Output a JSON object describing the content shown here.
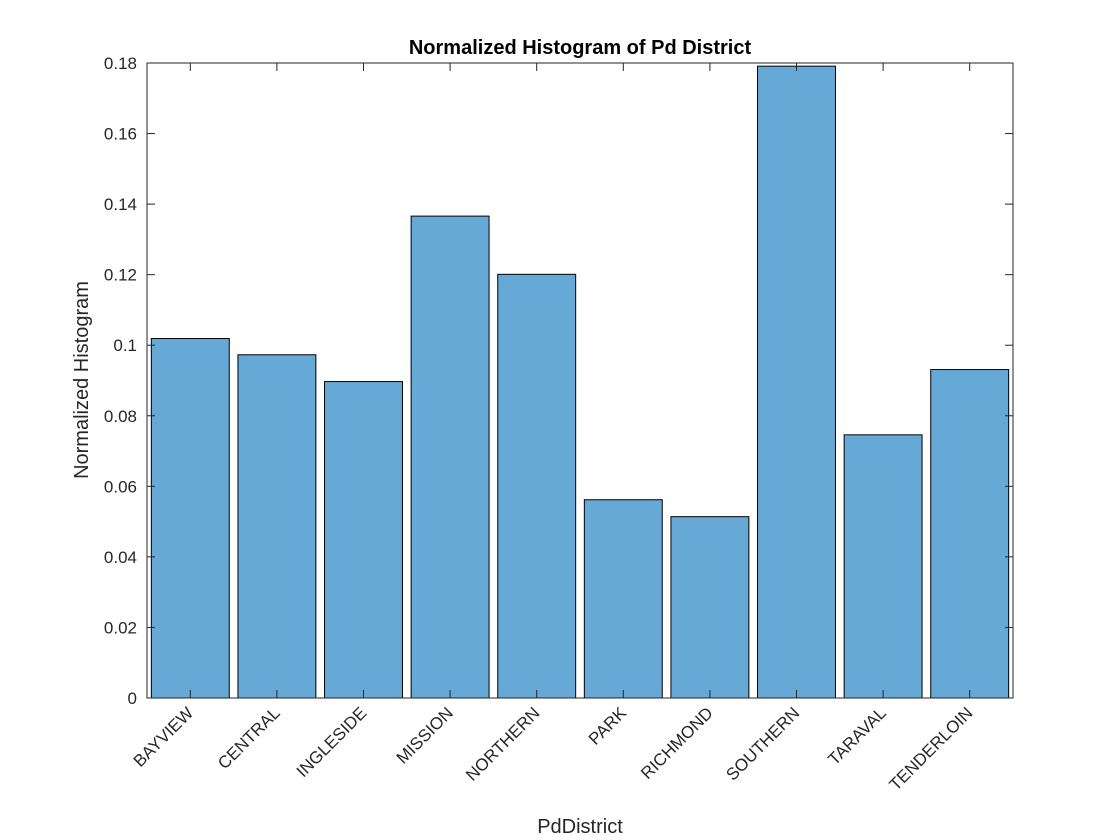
{
  "chart_data": {
    "type": "bar",
    "title": "Normalized Histogram of Pd District",
    "xlabel": "PdDistrict",
    "ylabel": "Normalized Histogram",
    "categories": [
      "BAYVIEW",
      "CENTRAL",
      "INGLESIDE",
      "MISSION",
      "NORTHERN",
      "PARK",
      "RICHMOND",
      "SOUTHERN",
      "TARAVAL",
      "TENDERLOIN"
    ],
    "values": [
      0.1019,
      0.0973,
      0.0897,
      0.1366,
      0.1201,
      0.0562,
      0.0514,
      0.1791,
      0.0746,
      0.0931
    ],
    "ylim": [
      0,
      0.18
    ],
    "yticks": [
      "0",
      "0.02",
      "0.04",
      "0.06",
      "0.08",
      "0.1",
      "0.12",
      "0.14",
      "0.16",
      "0.18"
    ],
    "grid": false,
    "colors": {
      "bar_fill": "#66a9d7",
      "bar_edge": "#000000",
      "axis": "#262626"
    }
  }
}
